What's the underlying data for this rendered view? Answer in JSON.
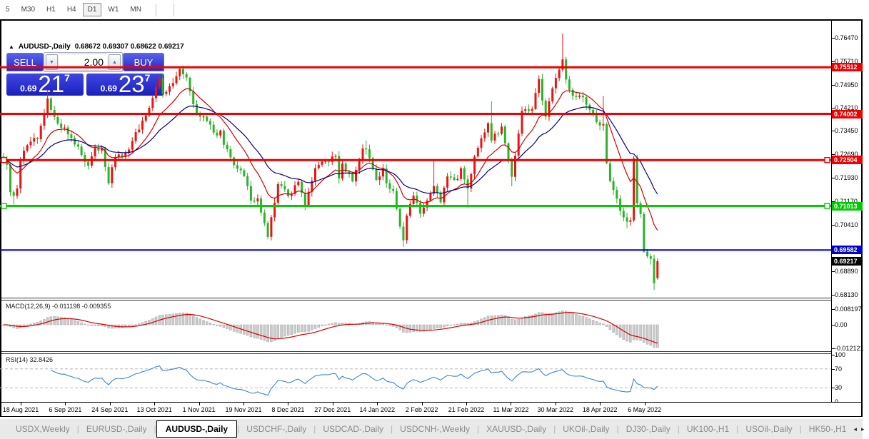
{
  "toolbar": {
    "timeframes": [
      "5",
      "M30",
      "H1",
      "H4",
      "D1",
      "W1",
      "MN"
    ],
    "active_timeframe": "D1"
  },
  "symbol_header": {
    "collapse_icon": "▲",
    "title": "AUDUSD-,Daily",
    "ohlc_text": "0.68672 0.69307 0.68622 0.69217"
  },
  "trade_panel": {
    "sell_label": "SELL",
    "buy_label": "BUY",
    "volume_value": "2.00",
    "spinner_down_icon": "▼",
    "spinner_up_icon": "▲",
    "sell_price_small": "0.69",
    "sell_price_big": "21",
    "sell_price_sup": "7",
    "buy_price_small": "0.69",
    "buy_price_big": "23",
    "buy_price_sup": "7"
  },
  "indicator_labels": {
    "macd": "MACD(12,26,9) -0.011198 -0.009355",
    "rsi": "RSI(14) 32.8426"
  },
  "axes": {
    "price_ticks": [
      "0.76470",
      "0.75710",
      "0.74950",
      "0.74210",
      "0.73450",
      "0.72690",
      "0.71930",
      "0.71170",
      "0.70410",
      "0.68890",
      "0.68130"
    ],
    "macd_ticks": [
      "0.008197",
      "0.00",
      "-0.012121"
    ],
    "rsi_ticks": [
      "100",
      "70",
      "30",
      "0"
    ],
    "dates": [
      "18 Aug 2021",
      "6 Sep 2021",
      "24 Sep 2021",
      "13 Oct 2021",
      "1 Nov 2021",
      "19 Nov 2021",
      "8 Dec 2021",
      "27 Dec 2021",
      "14 Jan 2022",
      "2 Feb 2022",
      "21 Feb 2022",
      "11 Mar 2022",
      "30 Mar 2022",
      "18 Apr 2022",
      "6 May 2022"
    ]
  },
  "current_price_label": {
    "text": "0.69217",
    "bg": "#000000"
  },
  "tabs": {
    "items": [
      "USDX,Weekly",
      "EURUSD-,Daily",
      "AUDUSD-,Daily",
      "USDCHF-,Daily",
      "USDCAD-,Daily",
      "USDCNH-,Weekly",
      "XAUUSD-,Daily",
      "UKOil-,Daily",
      "DJ30-,Daily",
      "UK100-,H1",
      "USOil-,Daily",
      "HK50-,H1"
    ],
    "active": "AUDUSD-,Daily",
    "scroll_left_icon": "◂",
    "scroll_right_icon": "▸"
  },
  "chart_data": {
    "type": "candlestick",
    "symbol": "AUDUSD-",
    "timeframe": "Daily",
    "title": "AUDUSD-,Daily",
    "current_bar": {
      "open": 0.68672,
      "high": 0.69307,
      "low": 0.68622,
      "close": 0.69217
    },
    "bar_count": 194,
    "x_range_dates": [
      "18 Aug 2021",
      "6 May 2022"
    ],
    "y_range": [
      0.6813,
      0.7661
    ],
    "candle_up_color": "#ea1410",
    "candle_down_color": "#2bb32b",
    "close_anchors": [
      [
        0,
        0.725
      ],
      [
        1,
        0.7235
      ],
      [
        2,
        0.7146
      ],
      [
        3,
        0.7134,
        null,
        0.7106
      ],
      [
        4,
        0.7158
      ],
      [
        5,
        0.7253
      ],
      [
        8,
        0.731
      ],
      [
        10,
        0.7318
      ],
      [
        12,
        0.74
      ],
      [
        13,
        0.745,
        0.7478,
        null
      ],
      [
        15,
        0.739
      ],
      [
        16,
        0.7369
      ],
      [
        18,
        0.7356
      ],
      [
        20,
        0.7322
      ],
      [
        22,
        0.7294
      ],
      [
        23,
        0.7267
      ],
      [
        25,
        0.7232,
        null,
        0.722
      ],
      [
        27,
        0.729
      ],
      [
        29,
        0.7288
      ],
      [
        31,
        0.7175,
        null,
        0.717
      ],
      [
        32,
        0.7227
      ],
      [
        33,
        0.726
      ],
      [
        36,
        0.7273
      ],
      [
        38,
        0.7312
      ],
      [
        41,
        0.7378
      ],
      [
        43,
        0.742
      ],
      [
        46,
        0.7516
      ],
      [
        47,
        0.7465
      ],
      [
        50,
        0.75
      ],
      [
        52,
        0.7546,
        0.7555,
        null
      ],
      [
        54,
        0.7518
      ],
      [
        57,
        0.74
      ],
      [
        60,
        0.7377
      ],
      [
        63,
        0.733
      ],
      [
        64,
        0.7346
      ],
      [
        65,
        0.73
      ],
      [
        68,
        0.7234
      ],
      [
        71,
        0.7198
      ],
      [
        73,
        0.7119
      ],
      [
        75,
        0.7126
      ],
      [
        78,
        0.7001,
        null,
        0.6993
      ],
      [
        81,
        0.7172
      ],
      [
        84,
        0.7133
      ],
      [
        87,
        0.718
      ],
      [
        89,
        0.7102
      ],
      [
        92,
        0.7224
      ],
      [
        98,
        0.7263
      ],
      [
        99,
        0.719
      ],
      [
        100,
        0.7239
      ],
      [
        103,
        0.7181
      ],
      [
        106,
        0.7288
      ],
      [
        107,
        0.7285,
        0.7314,
        null
      ],
      [
        110,
        0.7186
      ],
      [
        112,
        0.7223
      ],
      [
        113,
        0.7175
      ],
      [
        115,
        0.715
      ],
      [
        117,
        0.7034
      ],
      [
        118,
        0.699,
        null,
        0.6968
      ],
      [
        119,
        0.707
      ],
      [
        121,
        0.7135
      ],
      [
        123,
        0.7076
      ],
      [
        127,
        0.7166,
        0.7248,
        null
      ],
      [
        129,
        0.7113
      ],
      [
        131,
        0.7197
      ],
      [
        134,
        0.7189
      ],
      [
        135,
        0.7224
      ],
      [
        137,
        0.7158,
        null,
        0.7095
      ],
      [
        139,
        0.7262
      ],
      [
        143,
        0.737
      ],
      [
        144,
        0.7314,
        0.7441,
        null
      ],
      [
        147,
        0.7359
      ],
      [
        150,
        0.7196,
        null,
        0.7165
      ],
      [
        153,
        0.741
      ],
      [
        156,
        0.7416
      ],
      [
        158,
        0.7513
      ],
      [
        160,
        0.7391
      ],
      [
        162,
        0.7483
      ],
      [
        165,
        0.7577,
        0.7661,
        null
      ],
      [
        166,
        0.7512
      ],
      [
        168,
        0.7459
      ],
      [
        171,
        0.7454
      ],
      [
        175,
        0.7373
      ],
      [
        177,
        0.7367,
        0.7458,
        null
      ],
      [
        178,
        0.724
      ],
      [
        179,
        0.7182
      ],
      [
        181,
        0.7125
      ],
      [
        183,
        0.7064
      ],
      [
        184,
        0.705,
        null,
        0.7029
      ],
      [
        185,
        0.7055
      ],
      [
        186,
        0.7256
      ],
      [
        187,
        0.711
      ],
      [
        188,
        0.7075
      ],
      [
        189,
        0.6953
      ],
      [
        190,
        0.6938
      ],
      [
        191,
        0.693,
        null,
        0.6911
      ],
      [
        192,
        0.6851,
        null,
        0.6829
      ],
      [
        193,
        0.69217,
        0.69307,
        0.68622
      ]
    ],
    "levels": [
      {
        "price": 0.75512,
        "label": "0.75512",
        "color": "#f00000",
        "width": 3,
        "markers": false
      },
      {
        "price": 0.74002,
        "label": "0.74002",
        "color": "#f00000",
        "width": 3,
        "markers": false
      },
      {
        "price": 0.72504,
        "label": "0.72504",
        "color": "#f00000",
        "width": 3,
        "markers": true
      },
      {
        "price": 0.71013,
        "label": "0.71013",
        "color": "#00cc00",
        "width": 3,
        "markers": true
      },
      {
        "price": 0.69582,
        "label": "0.69582",
        "color": "#0000cc",
        "width": 2,
        "markers": false
      }
    ],
    "moving_averages": [
      {
        "type": "EMA",
        "period": 12,
        "color": "#d40000"
      },
      {
        "type": "EMA",
        "period": 26,
        "color": "#000082"
      }
    ],
    "macd": {
      "fast": 12,
      "slow": 26,
      "signal_period": 9,
      "value": -0.011198,
      "signal_value": -0.009355,
      "scale_max": 0.008197,
      "scale_min": -0.012121,
      "histogram_color": "#cccccc",
      "histogram_edge": "#a5a5a5",
      "signal_color": "#d40000"
    },
    "rsi": {
      "period": 14,
      "value": 32.8426,
      "upper_level": 70,
      "lower_level": 30,
      "color": "#3d86cc",
      "level_color": "#b8b8b8"
    }
  }
}
